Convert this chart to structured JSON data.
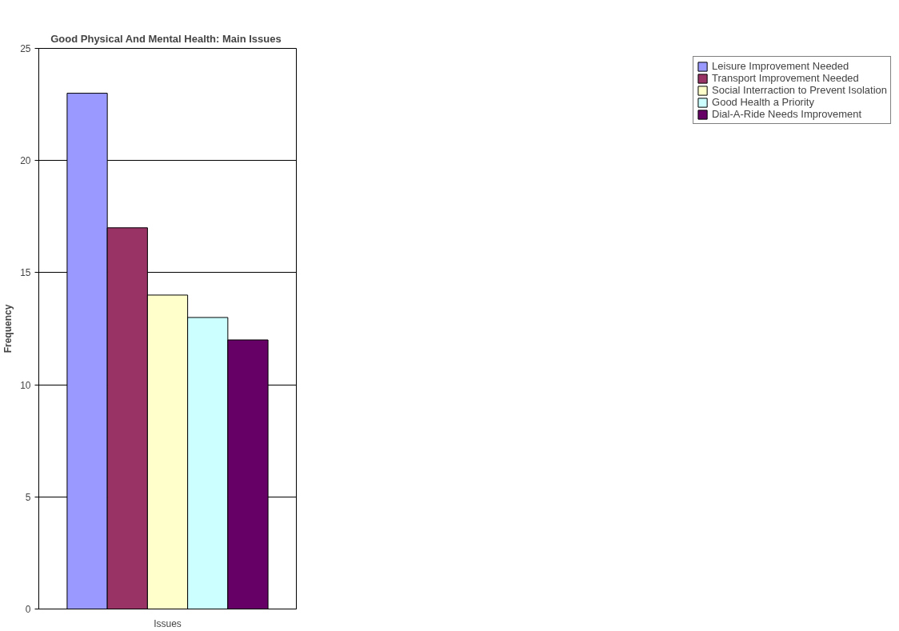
{
  "chart_data": {
    "type": "bar",
    "title": "Good Physical And Mental Health:  Main Issues",
    "ylabel": "Frequency",
    "categories": [
      "Issues"
    ],
    "series": [
      {
        "name": "Leisure Improvement Needed",
        "color": "#9999ff",
        "values": [
          23
        ]
      },
      {
        "name": "Transport Improvement Needed",
        "color": "#993366",
        "values": [
          17
        ]
      },
      {
        "name": "Social Interraction to Prevent Isolation",
        "color": "#ffffcc",
        "values": [
          14
        ]
      },
      {
        "name": "Good Health a Priority",
        "color": "#ccffff",
        "values": [
          13
        ]
      },
      {
        "name": "Dial-A-Ride Needs Improvement",
        "color": "#660066",
        "values": [
          12
        ]
      }
    ],
    "ylim": [
      0,
      25
    ],
    "yticks": [
      0,
      5,
      10,
      15,
      20,
      25
    ],
    "grid": "y",
    "legend": "right"
  }
}
